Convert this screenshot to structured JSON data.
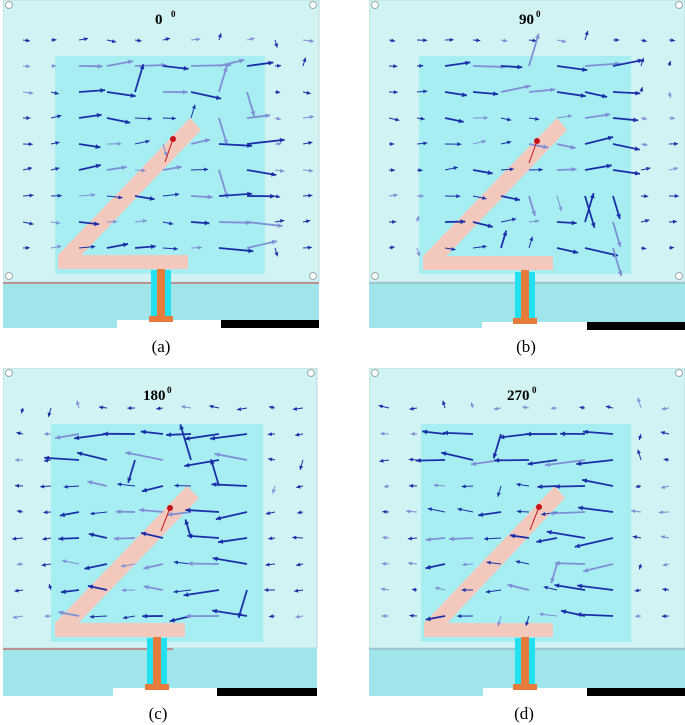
{
  "panels": [
    {
      "id": "a",
      "phase": "0",
      "sup": "0",
      "caption": "(a)"
    },
    {
      "id": "b",
      "phase": "90",
      "sup": "0",
      "caption": "(b)"
    },
    {
      "id": "c",
      "phase": "180",
      "sup": "0",
      "caption": "(c)"
    },
    {
      "id": "d",
      "phase": "270",
      "sup": "0",
      "caption": "(d)"
    }
  ],
  "colors": {
    "substrate_outer": "#d2f3f4",
    "ground_inner": "#a7eef2",
    "patch_fill": "#f3c9bd",
    "feed_line": "#e67c3b",
    "feed_cyan": "#23e0f0",
    "ground_plane": "#9fe5ea",
    "arrow_dark": "#1b2fa8",
    "arrow_light": "#7f8fd6",
    "port_dot": "#c6121a"
  }
}
